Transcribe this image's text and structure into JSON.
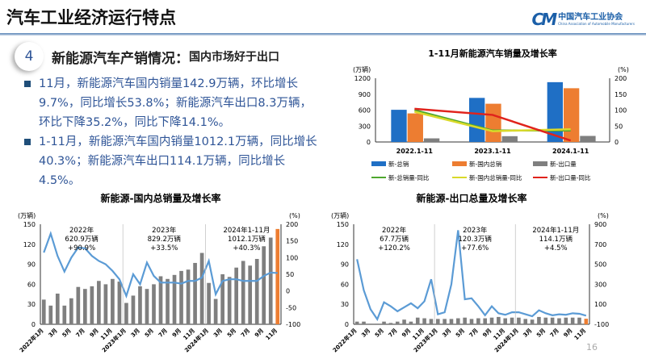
{
  "header": {
    "title": "汽车工业经济运行特点",
    "logo_text": "中国汽车工业协会",
    "logo_sub": "China Association of Automobile Manufacturers",
    "logo_mark": "CM"
  },
  "section": {
    "number": "4",
    "title": "新能源汽车产销情况：",
    "subtitle": "国内市场好于出口"
  },
  "bullets": [
    "11月，新能源汽车国内销量142.9万辆，环比增长9.7%，同比增长53.8%；新能源汽车出口8.3万辆，环比下降35.2%，同比下降14.1%。",
    "1-11月，新能源汽车国内销量1012.1万辆，同比增长40.3%；新能源汽车出口114.1万辆，同比增长4.5%。"
  ],
  "page_number": "16",
  "colors": {
    "blue": "#1f6fc5",
    "orange": "#ed7d31",
    "gray": "#7f7f7f",
    "green": "#4ea72e",
    "yellow": "#d9d92a",
    "red": "#e0231c",
    "line": "#5b9bd5",
    "accent": "#2f5597"
  },
  "chart_data": [
    {
      "type": "bar",
      "title": "1-11月新能源汽车销量及增长率",
      "ylabel": "(万辆)",
      "y2label": "(%)",
      "ylim": [
        0,
        1200
      ],
      "yticks": [
        0,
        300,
        600,
        900,
        1200
      ],
      "y2lim": [
        0,
        200
      ],
      "y2ticks": [
        0,
        50,
        100,
        150,
        200
      ],
      "categories": [
        "2022.1-11",
        "2023.1-11",
        "2024.1-11"
      ],
      "series": [
        {
          "name": "新-总销",
          "kind": "bar",
          "color": "#1f6fc5",
          "values": [
            606,
            830,
            1126
          ]
        },
        {
          "name": "新-国内总销",
          "kind": "bar",
          "color": "#ed7d31",
          "values": [
            538,
            720,
            1012
          ]
        },
        {
          "name": "新-出口量",
          "kind": "bar",
          "color": "#7f7f7f",
          "values": [
            68,
            109,
            114
          ]
        }
      ],
      "lines": [
        {
          "name": "新-总销量-同比",
          "color": "#4ea72e",
          "values": [
            100,
            36,
            36
          ]
        },
        {
          "name": "新-国内总销量-同比",
          "color": "#d9d92a",
          "values": [
            95,
            34,
            40
          ]
        },
        {
          "name": "新-出口量-同比",
          "color": "#e0231c",
          "values": [
            104,
            85,
            4.5
          ]
        }
      ]
    },
    {
      "type": "bar",
      "title": "新能源-国内总销量及增长率",
      "ylabel": "(万辆)",
      "y2label": "(%)",
      "ylim": [
        0,
        150
      ],
      "yticks": [
        0,
        30,
        60,
        90,
        120,
        150
      ],
      "y2lim": [
        -100,
        200
      ],
      "y2ticks": [
        -100,
        -50,
        0,
        50,
        100,
        150,
        200
      ],
      "categories": [
        "2022年1月",
        "2月",
        "3月",
        "4月",
        "5月",
        "6月",
        "7月",
        "8月",
        "9月",
        "10月",
        "11月",
        "12月",
        "2023年1月",
        "2月",
        "3月",
        "4月",
        "5月",
        "6月",
        "7月",
        "8月",
        "9月",
        "10月",
        "11月",
        "12月",
        "2024年1月",
        "2月",
        "3月",
        "4月",
        "5月",
        "6月",
        "7月",
        "8月",
        "9月",
        "10月",
        "11月"
      ],
      "ticklabels": [
        "2022年1月",
        "3月",
        "5月",
        "7月",
        "9月",
        "11月",
        "2023年1月",
        "3月",
        "5月",
        "7月",
        "9月",
        "11月",
        "2024年1月",
        "3月",
        "5月",
        "7月",
        "9月",
        "11月"
      ],
      "values": [
        37,
        28,
        46,
        28,
        39,
        56,
        53,
        57,
        65,
        60,
        68,
        64,
        32,
        43,
        57,
        53,
        60,
        72,
        68,
        74,
        80,
        82,
        92,
        107,
        62,
        38,
        75,
        71,
        85,
        95,
        88,
        98,
        117,
        130,
        142.9
      ],
      "growth": [
        115,
        172,
        105,
        58,
        100,
        130,
        128,
        105,
        90,
        80,
        60,
        35,
        -15,
        50,
        20,
        85,
        45,
        25,
        25,
        25,
        22,
        30,
        30,
        40,
        90,
        -10,
        30,
        35,
        35,
        30,
        30,
        30,
        45,
        55,
        53.8
      ],
      "annotations": [
        {
          "text": [
            "2022年",
            "620.9万辆",
            "+90.9%"
          ]
        },
        {
          "text": [
            "2023年",
            "829.2万辆",
            "+33.5%"
          ]
        },
        {
          "text": [
            "2024年1-11月",
            "1012.1万辆",
            "+40.3%"
          ]
        }
      ]
    },
    {
      "type": "bar",
      "title": "新能源-出口总量及增长率",
      "ylabel": "(万辆)",
      "y2label": "(%)",
      "ylim": [
        0,
        150
      ],
      "yticks": [
        0,
        30,
        60,
        90,
        120,
        150
      ],
      "y2lim": [
        -100,
        900
      ],
      "y2ticks": [
        -100,
        100,
        300,
        500,
        700,
        900
      ],
      "categories": [
        "2022年1月",
        "2月",
        "3月",
        "4月",
        "5月",
        "6月",
        "7月",
        "8月",
        "9月",
        "10月",
        "11月",
        "12月",
        "2023年1月",
        "2月",
        "3月",
        "4月",
        "5月",
        "6月",
        "7月",
        "8月",
        "9月",
        "10月",
        "11月",
        "12月",
        "2024年1月",
        "2月",
        "3月",
        "4月",
        "5月",
        "6月",
        "7月",
        "8月",
        "9月",
        "10月",
        "11月"
      ],
      "ticklabels": [
        "2022年1月",
        "3月",
        "5月",
        "7月",
        "9月",
        "11月",
        "2023年1月",
        "3月",
        "5月",
        "7月",
        "9月",
        "11月",
        "2024年1月",
        "3月",
        "5月",
        "7月",
        "9月",
        "11月"
      ],
      "values": [
        4,
        4,
        1,
        1,
        4,
        2,
        4,
        7,
        4,
        10,
        9,
        8,
        8,
        8,
        8,
        9,
        10,
        8,
        9,
        9,
        10,
        11,
        9,
        10,
        10,
        8,
        7,
        11,
        10,
        10,
        9,
        10,
        10,
        10,
        8.3
      ],
      "growth": [
        550,
        240,
        50,
        -50,
        120,
        80,
        30,
        70,
        110,
        60,
        130,
        350,
        0,
        20,
        300,
        840,
        150,
        160,
        80,
        -10,
        80,
        10,
        -5,
        20,
        20,
        0,
        -20,
        40,
        10,
        -10,
        0,
        -5,
        10,
        5,
        -14.1
      ],
      "annotations": [
        {
          "text": [
            "2022年",
            "67.7万辆",
            "+120.2%"
          ]
        },
        {
          "text": [
            "2023年",
            "120.3万辆",
            "+77.6%"
          ]
        },
        {
          "text": [
            "2024年1-11月",
            "114.1万辆",
            "+4.5%"
          ]
        }
      ]
    }
  ]
}
